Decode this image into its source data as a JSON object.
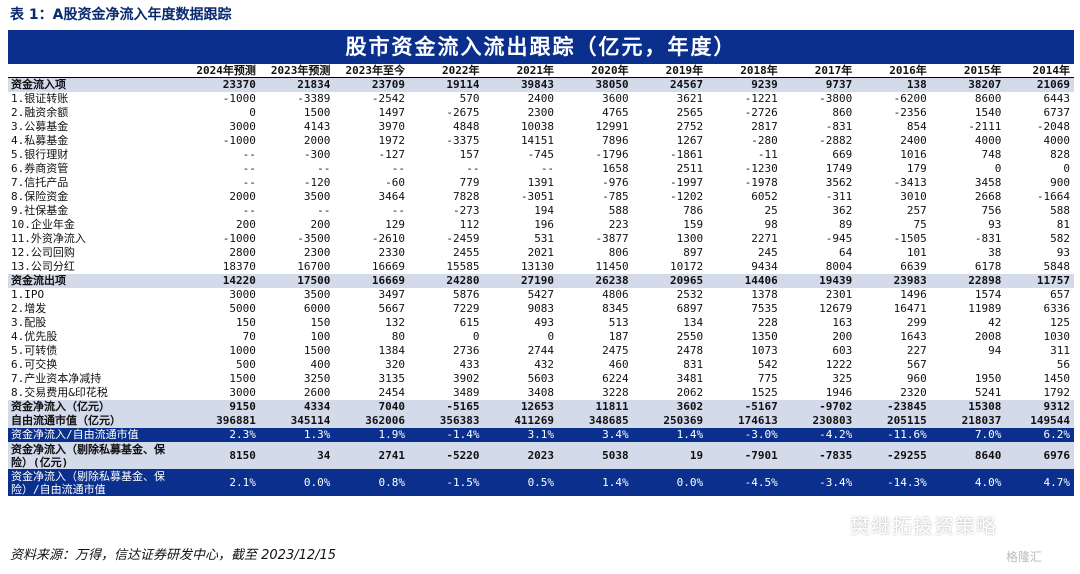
{
  "caption": "表 1：A股资金净流入年度数据跟踪",
  "banner_title": "股市资金流入流出跟踪（亿元，年度）",
  "columns": [
    "",
    "2024年预测",
    "2023年预测",
    "2023年至今",
    "2022年",
    "2021年",
    "2020年",
    "2019年",
    "2018年",
    "2017年",
    "2016年",
    "2015年",
    "2014年"
  ],
  "rows": [
    {
      "style": "sec",
      "cells": [
        "资金流入项",
        "23370",
        "21834",
        "23709",
        "19114",
        "39843",
        "38050",
        "24567",
        "9239",
        "9737",
        "138",
        "38207",
        "21069"
      ]
    },
    {
      "style": "",
      "cells": [
        "1.银证转账",
        "-1000",
        "-3389",
        "-2542",
        "570",
        "2400",
        "3600",
        "3621",
        "-1221",
        "-3800",
        "-6200",
        "8600",
        "6443"
      ]
    },
    {
      "style": "",
      "cells": [
        "2.融资余额",
        "0",
        "1500",
        "1497",
        "-2675",
        "2300",
        "4765",
        "2565",
        "-2726",
        "860",
        "-2356",
        "1540",
        "6737"
      ]
    },
    {
      "style": "",
      "cells": [
        "3.公募基金",
        "3000",
        "4143",
        "3970",
        "4848",
        "10038",
        "12991",
        "2752",
        "2817",
        "-831",
        "854",
        "-2111",
        "-2048"
      ]
    },
    {
      "style": "",
      "cells": [
        "4.私募基金",
        "-1000",
        "2000",
        "1972",
        "-3375",
        "14151",
        "7896",
        "1267",
        "-280",
        "-2882",
        "2400",
        "4000",
        "4000"
      ]
    },
    {
      "style": "",
      "cells": [
        "5.银行理财",
        "--",
        "-300",
        "-127",
        "157",
        "-745",
        "-1796",
        "-1861",
        "-11",
        "669",
        "1016",
        "748",
        "828"
      ]
    },
    {
      "style": "",
      "cells": [
        "6.券商资管",
        "--",
        "--",
        "--",
        "--",
        "--",
        "1658",
        "2511",
        "-1230",
        "1749",
        "179",
        "0",
        "0"
      ]
    },
    {
      "style": "",
      "cells": [
        "7.信托产品",
        "--",
        "-120",
        "-60",
        "779",
        "1391",
        "-976",
        "-1997",
        "-1978",
        "3562",
        "-3413",
        "3458",
        "900"
      ]
    },
    {
      "style": "",
      "cells": [
        "8.保险资金",
        "2000",
        "3500",
        "3464",
        "7828",
        "-3051",
        "-785",
        "-1202",
        "6052",
        "-311",
        "3010",
        "2668",
        "-1664"
      ]
    },
    {
      "style": "",
      "cells": [
        "9.社保基金",
        "--",
        "--",
        "--",
        "-273",
        "194",
        "588",
        "786",
        "25",
        "362",
        "257",
        "756",
        "588"
      ]
    },
    {
      "style": "",
      "cells": [
        "10.企业年金",
        "200",
        "200",
        "129",
        "112",
        "196",
        "223",
        "159",
        "98",
        "89",
        "75",
        "93",
        "81"
      ]
    },
    {
      "style": "",
      "cells": [
        "11.外资净流入",
        "-1000",
        "-3500",
        "-2610",
        "-2459",
        "531",
        "-3877",
        "1300",
        "2271",
        "-945",
        "-1505",
        "-831",
        "582"
      ]
    },
    {
      "style": "",
      "cells": [
        "12.公司回购",
        "2800",
        "2300",
        "2330",
        "2455",
        "2021",
        "806",
        "897",
        "245",
        "64",
        "101",
        "38",
        "93"
      ]
    },
    {
      "style": "",
      "cells": [
        "13.公司分红",
        "18370",
        "16700",
        "16669",
        "15585",
        "13130",
        "11450",
        "10172",
        "9434",
        "8004",
        "6639",
        "6178",
        "5848"
      ]
    },
    {
      "style": "sec",
      "cells": [
        "资金流出项",
        "14220",
        "17500",
        "16669",
        "24280",
        "27190",
        "26238",
        "20965",
        "14406",
        "19439",
        "23983",
        "22898",
        "11757"
      ]
    },
    {
      "style": "",
      "cells": [
        "1.IPO",
        "3000",
        "3500",
        "3497",
        "5876",
        "5427",
        "4806",
        "2532",
        "1378",
        "2301",
        "1496",
        "1574",
        "657"
      ]
    },
    {
      "style": "",
      "cells": [
        "2.增发",
        "5000",
        "6000",
        "5667",
        "7229",
        "9083",
        "8345",
        "6897",
        "7535",
        "12679",
        "16471",
        "11989",
        "6336"
      ]
    },
    {
      "style": "",
      "cells": [
        "3.配股",
        "150",
        "150",
        "132",
        "615",
        "493",
        "513",
        "134",
        "228",
        "163",
        "299",
        "42",
        "125"
      ]
    },
    {
      "style": "",
      "cells": [
        "4.优先股",
        "70",
        "100",
        "80",
        "0",
        "0",
        "187",
        "2550",
        "1350",
        "200",
        "1643",
        "2008",
        "1030"
      ]
    },
    {
      "style": "",
      "cells": [
        "5.可转债",
        "1000",
        "1500",
        "1384",
        "2736",
        "2744",
        "2475",
        "2478",
        "1073",
        "603",
        "227",
        "94",
        "311"
      ]
    },
    {
      "style": "",
      "cells": [
        "6.可交换",
        "500",
        "400",
        "320",
        "433",
        "432",
        "460",
        "831",
        "542",
        "1222",
        "567",
        "",
        "56"
      ]
    },
    {
      "style": "",
      "cells": [
        "7.产业资本净减持",
        "1500",
        "3250",
        "3135",
        "3902",
        "5603",
        "6224",
        "3481",
        "775",
        "325",
        "960",
        "1950",
        "1450"
      ]
    },
    {
      "style": "",
      "cells": [
        "8.交易费用&印花税",
        "3000",
        "2600",
        "2454",
        "3489",
        "3408",
        "3228",
        "2062",
        "1525",
        "1946",
        "2320",
        "5241",
        "1792"
      ]
    },
    {
      "style": "sec",
      "cells": [
        "资金净流入（亿元）",
        "9150",
        "4334",
        "7040",
        "-5165",
        "12653",
        "11811",
        "3602",
        "-5167",
        "-9702",
        "-23845",
        "15308",
        "9312"
      ]
    },
    {
      "style": "sec",
      "cells": [
        "自由流通市值（亿元）",
        "396881",
        "345114",
        "362006",
        "356383",
        "411269",
        "348685",
        "250369",
        "174613",
        "230803",
        "205115",
        "218037",
        "149544"
      ]
    },
    {
      "style": "hl",
      "cells": [
        "资金净流入/自由流通市值",
        "2.3%",
        "1.3%",
        "1.9%",
        "-1.4%",
        "3.1%",
        "3.4%",
        "1.4%",
        "-3.0%",
        "-4.2%",
        "-11.6%",
        "7.0%",
        "6.2%"
      ]
    },
    {
      "style": "sec tall",
      "cells": [
        "资金净流入（剔除私募基金、保险）(亿元)",
        "8150",
        "34",
        "2741",
        "-5220",
        "2023",
        "5038",
        "19",
        "-7901",
        "-7835",
        "-29255",
        "8640",
        "6976"
      ]
    },
    {
      "style": "hl tall",
      "cells": [
        "资金净流入（剔除私募基金、保险）/自由流通市值",
        "2.1%",
        "0.0%",
        "0.8%",
        "-1.5%",
        "0.5%",
        "1.4%",
        "0.0%",
        "-4.5%",
        "-3.4%",
        "-14.3%",
        "4.0%",
        "4.7%"
      ]
    }
  ],
  "footer": "资料来源：万得，信达证券研发中心，截至 2023/12/15",
  "watermark": "樊继拓投资策略",
  "logo_text": "格隆汇",
  "colors": {
    "banner": "#0b2f8c",
    "section": "#d3daea",
    "caption": "#0a2a6e"
  }
}
